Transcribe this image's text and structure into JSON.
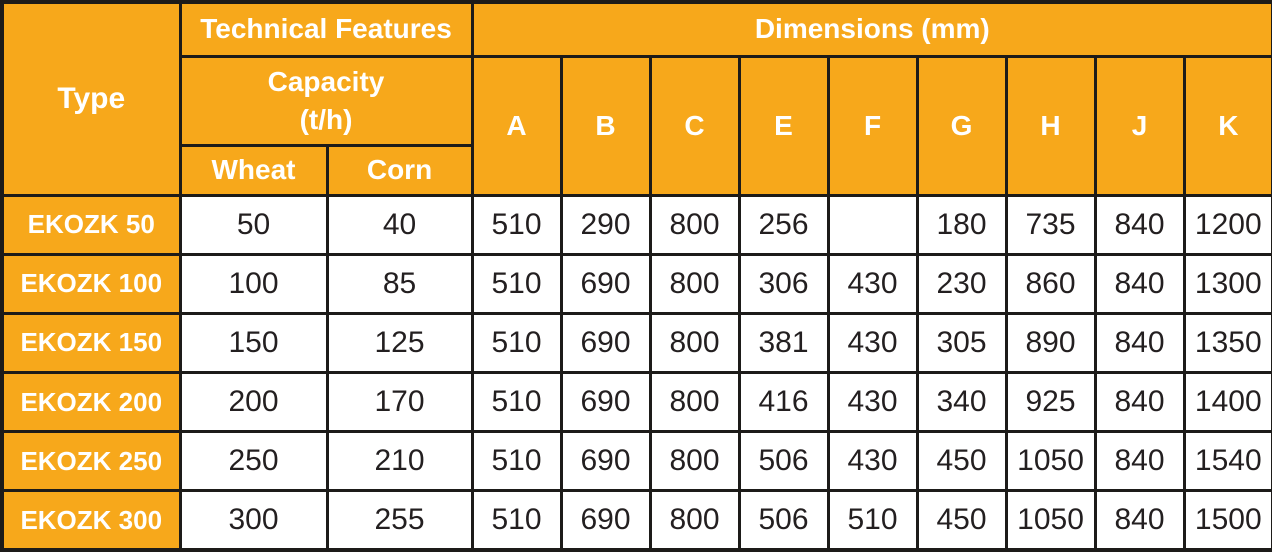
{
  "table": {
    "header": {
      "type_label": "Type",
      "technical_features_label": "Technical Features",
      "capacity_label": "Capacity\n(t/h)",
      "wheat_label": "Wheat",
      "corn_label": "Corn",
      "dimensions_label": "Dimensions (mm)",
      "dimension_columns": [
        "A",
        "B",
        "C",
        "E",
        "F",
        "G",
        "H",
        "J",
        "K"
      ]
    },
    "rows": [
      {
        "type": "EKOZK 50",
        "wheat": "50",
        "corn": "40",
        "dims": [
          "510",
          "290",
          "800",
          "256",
          "",
          "180",
          "735",
          "840",
          "1200"
        ]
      },
      {
        "type": "EKOZK 100",
        "wheat": "100",
        "corn": "85",
        "dims": [
          "510",
          "690",
          "800",
          "306",
          "430",
          "230",
          "860",
          "840",
          "1300"
        ]
      },
      {
        "type": "EKOZK 150",
        "wheat": "150",
        "corn": "125",
        "dims": [
          "510",
          "690",
          "800",
          "381",
          "430",
          "305",
          "890",
          "840",
          "1350"
        ]
      },
      {
        "type": "EKOZK 200",
        "wheat": "200",
        "corn": "170",
        "dims": [
          "510",
          "690",
          "800",
          "416",
          "430",
          "340",
          "925",
          "840",
          "1400"
        ]
      },
      {
        "type": "EKOZK 250",
        "wheat": "250",
        "corn": "210",
        "dims": [
          "510",
          "690",
          "800",
          "506",
          "430",
          "450",
          "1050",
          "840",
          "1540"
        ]
      },
      {
        "type": "EKOZK 300",
        "wheat": "300",
        "corn": "255",
        "dims": [
          "510",
          "690",
          "800",
          "506",
          "510",
          "450",
          "1050",
          "840",
          "1500"
        ]
      }
    ],
    "colors": {
      "header_bg": "#f7a81b",
      "border": "#1d1b19",
      "header_text": "#ffffff",
      "data_text": "#231f20",
      "cell_bg": "#ffffff"
    }
  }
}
